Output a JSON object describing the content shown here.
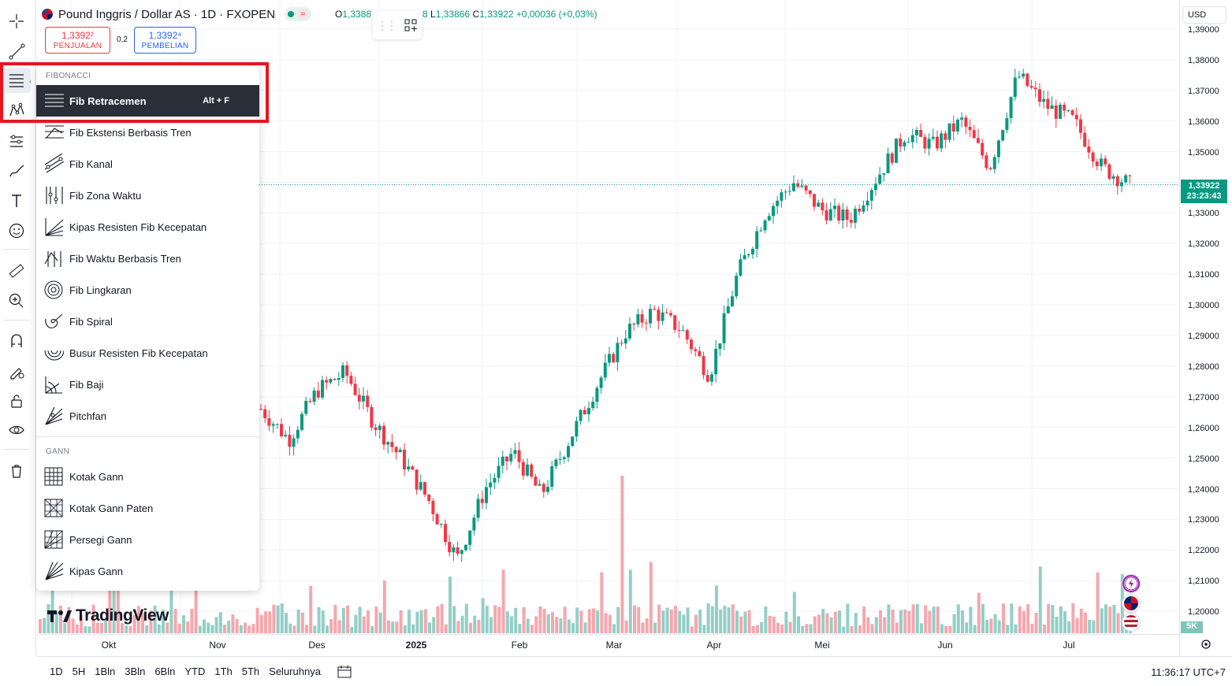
{
  "header": {
    "symbol_title": "Pound Inggris / Dollar AS · 1D · FXOPEN",
    "status_badge": "≈",
    "ohlc_open_label": "O",
    "ohlc_open_value": "1,3388",
    "ohlc_high_tail": "8",
    "ohlc_low_label": "L",
    "ohlc_low_value": "1,33866",
    "ohlc_close_label": "C",
    "ohlc_close_value": "1,33922",
    "ohlc_change": "+0,00036 (+0,03%)"
  },
  "trade": {
    "sell_price": "1,3392²",
    "sell_label": "PENJUALAN",
    "spread": "0,2",
    "buy_price": "1,3392⁴",
    "buy_label": "PEMBELIAN"
  },
  "price_axis": {
    "currency": "USD",
    "ticks": [
      "1,39000",
      "1,38000",
      "1,37000",
      "1,36000",
      "1,35000",
      "1,34000",
      "1,33000",
      "1,32000",
      "1,31000",
      "1,30000",
      "1,29000",
      "1,28000",
      "1,27000",
      "1,26000",
      "1,25000",
      "1,24000",
      "1,23000",
      "1,22000",
      "1,21000",
      "1,20000"
    ],
    "last_price": "1,33922",
    "countdown": "23:23:43",
    "volume_label": "5K"
  },
  "time_axis": {
    "ticks": [
      {
        "label": "Okt",
        "bold": false
      },
      {
        "label": "Nov",
        "bold": false
      },
      {
        "label": "Des",
        "bold": false
      },
      {
        "label": "2025",
        "bold": true
      },
      {
        "label": "Feb",
        "bold": false
      },
      {
        "label": "Mar",
        "bold": false
      },
      {
        "label": "Apr",
        "bold": false
      },
      {
        "label": "Mei",
        "bold": false
      },
      {
        "label": "Jun",
        "bold": false
      },
      {
        "label": "Jul",
        "bold": false
      }
    ]
  },
  "bottom_bar": {
    "ranges": [
      "1D",
      "5H",
      "1Bln",
      "3Bln",
      "6Bln",
      "YTD",
      "1Th",
      "5Th",
      "Seluruhnya"
    ],
    "time": "11:36:17 UTC+7"
  },
  "logo": "TradingView",
  "fib_menu": {
    "section_fibonacci": "FIBONACCI",
    "section_gann": "GANN",
    "fib_items": [
      {
        "label": "Fib Retracemen",
        "shortcut": "Alt + F",
        "icon": "fib-retracement-icon",
        "selected": true
      },
      {
        "label": "Fib Ekstensi Berbasis Tren",
        "shortcut": "",
        "icon": "fib-extension-icon",
        "selected": false
      },
      {
        "label": "Fib Kanal",
        "shortcut": "",
        "icon": "fib-channel-icon",
        "selected": false
      },
      {
        "label": "Fib Zona Waktu",
        "shortcut": "",
        "icon": "fib-time-zone-icon",
        "selected": false
      },
      {
        "label": "Kipas Resisten Fib Kecepatan",
        "shortcut": "",
        "icon": "fib-speed-fan-icon",
        "selected": false
      },
      {
        "label": "Fib Waktu Berbasis Tren",
        "shortcut": "",
        "icon": "fib-trend-time-icon",
        "selected": false
      },
      {
        "label": "Fib Lingkaran",
        "shortcut": "",
        "icon": "fib-circles-icon",
        "selected": false
      },
      {
        "label": "Fib Spiral",
        "shortcut": "",
        "icon": "fib-spiral-icon",
        "selected": false
      },
      {
        "label": "Busur Resisten Fib Kecepatan",
        "shortcut": "",
        "icon": "fib-speed-arcs-icon",
        "selected": false
      },
      {
        "label": "Fib Baji",
        "shortcut": "",
        "icon": "fib-wedge-icon",
        "selected": false
      },
      {
        "label": "Pitchfan",
        "shortcut": "",
        "icon": "pitchfan-icon",
        "selected": false
      }
    ],
    "gann_items": [
      {
        "label": "Kotak Gann",
        "icon": "gann-box-icon"
      },
      {
        "label": "Kotak Gann Paten",
        "icon": "gann-fixed-box-icon"
      },
      {
        "label": "Persegi Gann",
        "icon": "gann-square-icon"
      },
      {
        "label": "Kipas Gann",
        "icon": "gann-fan-icon"
      }
    ]
  },
  "colors": {
    "up": "#089981",
    "down": "#f23645",
    "highlight": "#e8141e"
  },
  "chart_data": {
    "type": "candlestick",
    "symbol": "GBPUSD",
    "ylim": [
      1.2,
      1.39
    ],
    "x_labels": [
      "Okt",
      "Nov",
      "Des",
      "2025",
      "Feb",
      "Mar",
      "Apr",
      "Mei",
      "Jun",
      "Jul"
    ],
    "last_close": 1.33922,
    "approx_path": [
      [
        "Des",
        1.266
      ],
      [
        "Des",
        1.256
      ],
      [
        "Des",
        1.272
      ],
      [
        "Des",
        1.278
      ],
      [
        "2025",
        1.262
      ],
      [
        "2025",
        1.25
      ],
      [
        "2025",
        1.236
      ],
      [
        "2025",
        1.217
      ],
      [
        "2025",
        1.24
      ],
      [
        "Feb",
        1.252
      ],
      [
        "Feb",
        1.238
      ],
      [
        "Feb",
        1.256
      ],
      [
        "Mar",
        1.274
      ],
      [
        "Mar",
        1.291
      ],
      [
        "Mar",
        1.298
      ],
      [
        "Apr",
        1.292
      ],
      [
        "Apr",
        1.277
      ],
      [
        "Apr",
        1.31
      ],
      [
        "Apr",
        1.33
      ],
      [
        "Mei",
        1.34
      ],
      [
        "Mei",
        1.331
      ],
      [
        "Mei",
        1.328
      ],
      [
        "Mei",
        1.342
      ],
      [
        "Jun",
        1.356
      ],
      [
        "Jun",
        1.352
      ],
      [
        "Jun",
        1.36
      ],
      [
        "Jun",
        1.345
      ],
      [
        "Jul",
        1.375
      ],
      [
        "Jul",
        1.365
      ],
      [
        "Jul",
        1.36
      ],
      [
        "Jul",
        1.345
      ],
      [
        "Jul",
        1.3392
      ]
    ]
  }
}
